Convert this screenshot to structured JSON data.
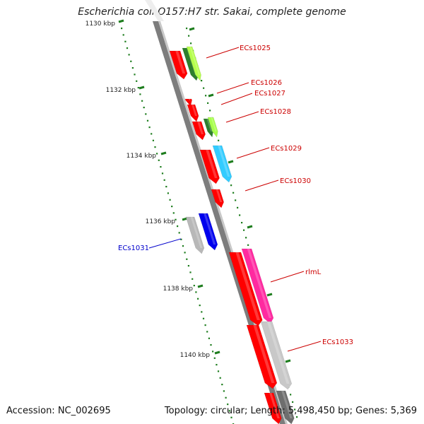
{
  "title": "Escherichia coli O157:H7 str. Sakai, complete genome",
  "footer": {
    "accession": "Accession: NC_002695",
    "topology": "Topology: circular; Length: 5,498,450 bp; Genes: 5,369"
  },
  "colors": {
    "backbone": "#7f7f7f",
    "tick": "#1e7d1e",
    "red_gene": "#ff0000",
    "red_label": "#cc0000",
    "blue_label": "#0000cc"
  },
  "ticks": [
    {
      "label": "1130 kbp",
      "kbp": 1130
    },
    {
      "label": "1132 kbp",
      "kbp": 1132
    },
    {
      "label": "1134 kbp",
      "kbp": 1134
    },
    {
      "label": "1136 kbp",
      "kbp": 1136
    },
    {
      "label": "1138 kbp",
      "kbp": 1138
    },
    {
      "label": "1140 kbp",
      "kbp": 1140
    }
  ],
  "genes": [
    {
      "id": "ECs1025",
      "label": "ECs1025",
      "color": "red"
    },
    {
      "id": "ECs1026",
      "label": "ECs1026",
      "color": "red"
    },
    {
      "id": "ECs1027",
      "label": "ECs1027",
      "color": "red"
    },
    {
      "id": "ECs1028",
      "label": "ECs1028",
      "color": "red"
    },
    {
      "id": "ECs1029",
      "label": "ECs1029",
      "color": "red"
    },
    {
      "id": "ECs1030",
      "label": "ECs1030",
      "color": "red"
    },
    {
      "id": "ECs1031",
      "label": "ECs1031",
      "color": "blue"
    },
    {
      "id": "rlmL",
      "label": "rlmL",
      "color": "red"
    },
    {
      "id": "ECs1033",
      "label": "ECs1033",
      "color": "red"
    }
  ]
}
